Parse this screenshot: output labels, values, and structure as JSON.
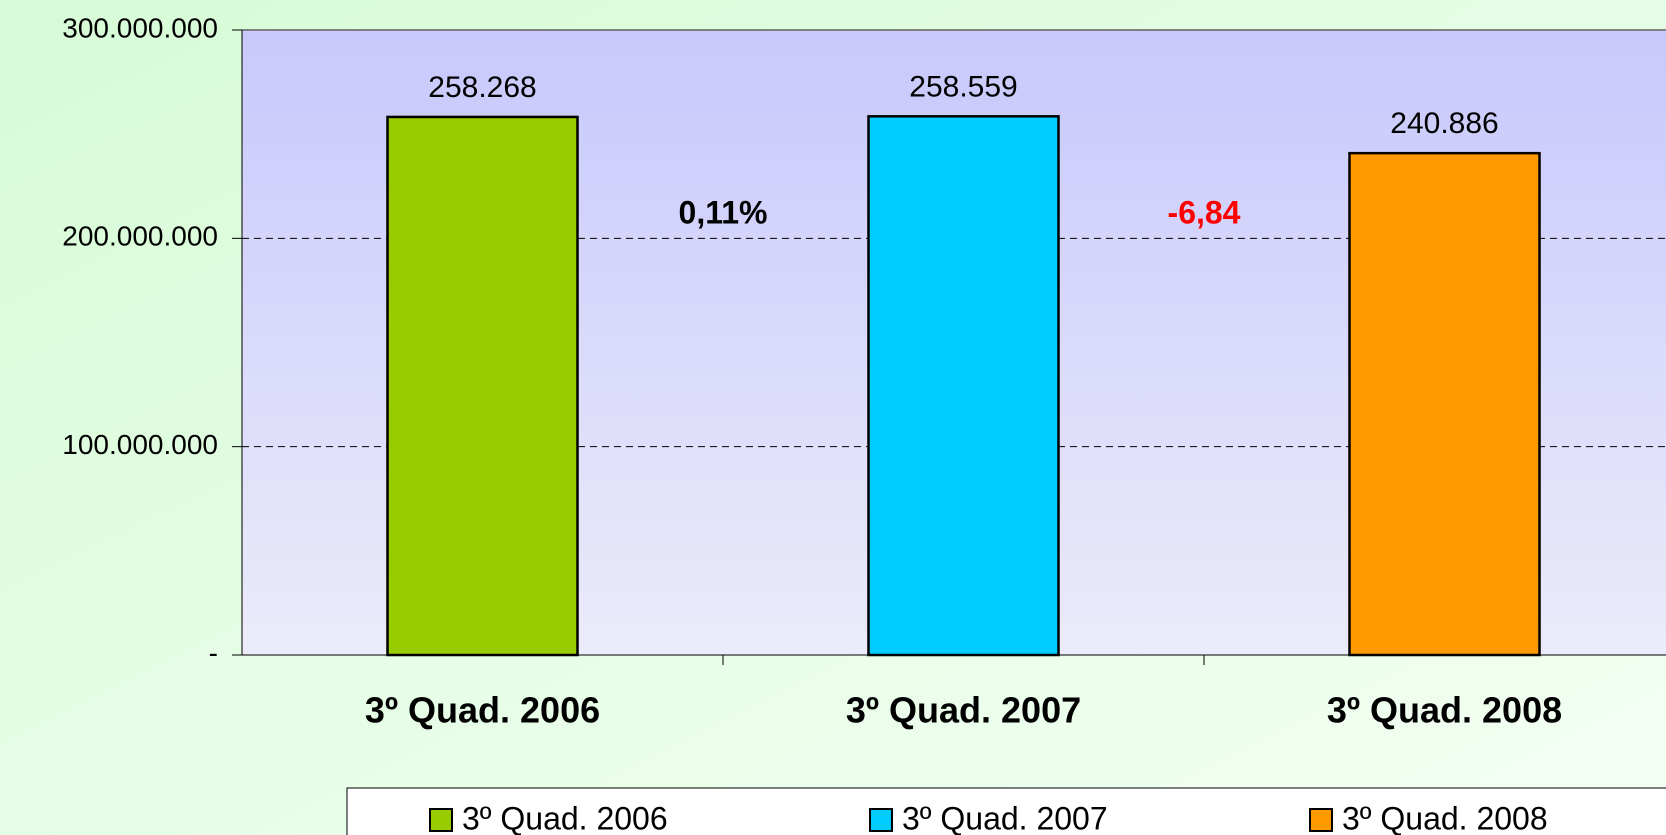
{
  "chart_data": {
    "type": "bar",
    "categories": [
      "3º Quad. 2006",
      "3º Quad. 2007",
      "3º Quad. 2008"
    ],
    "values": [
      258268000,
      258559000,
      240886000
    ],
    "value_labels": [
      "258.268",
      "258.559",
      "240.886"
    ],
    "colors": [
      "#99cc00",
      "#00ccff",
      "#ff9900"
    ],
    "ylim": [
      0,
      300000000
    ],
    "yticks": [
      {
        "value": 0,
        "label": "-"
      },
      {
        "value": 100000000,
        "label": "100.000.000"
      },
      {
        "value": 200000000,
        "label": "200.000.000"
      },
      {
        "value": 300000000,
        "label": "300.000.000"
      }
    ],
    "grid": true,
    "annotations": [
      {
        "text": "0,11%",
        "color": "#000000"
      },
      {
        "text": "-6,84",
        "color": "#ff0000"
      }
    ],
    "legend": "bottom"
  }
}
